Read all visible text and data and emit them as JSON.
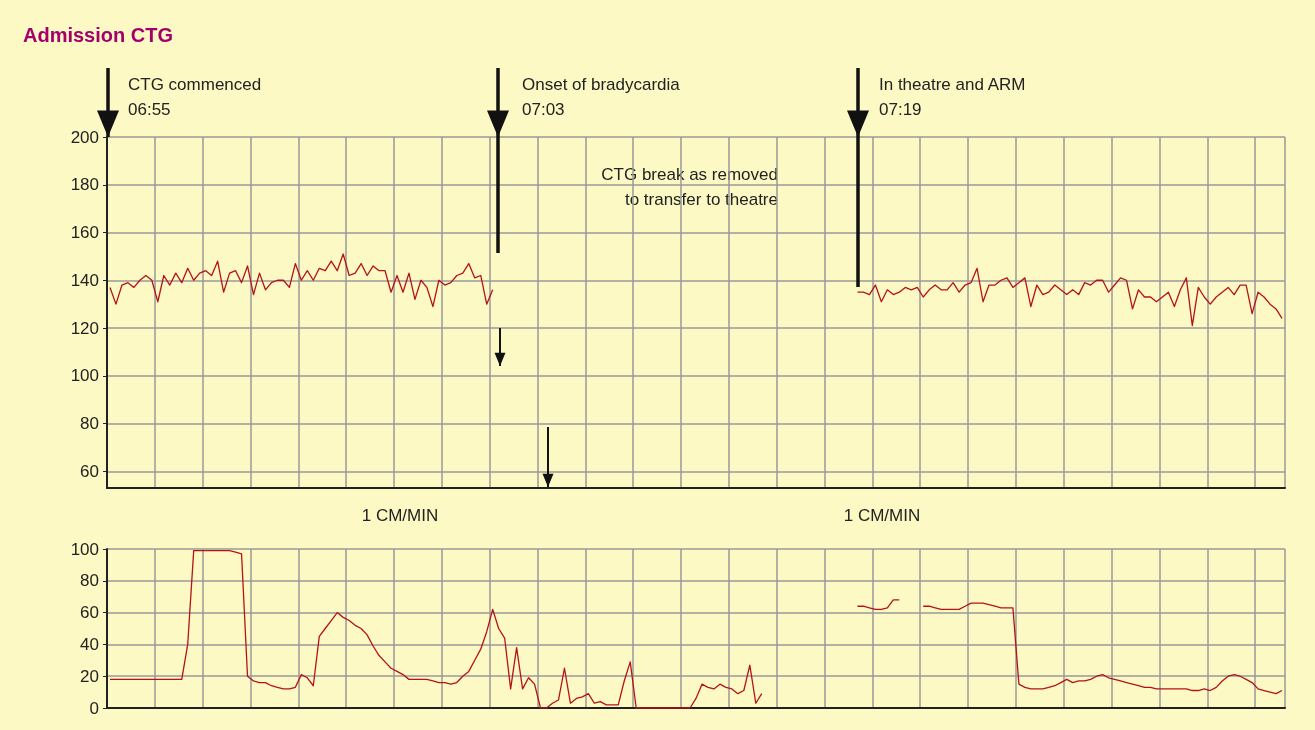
{
  "chart_data": [
    {
      "type": "line",
      "title": "Admission CTG",
      "annotations": [
        "CTG commenced\n06:55",
        "Onset of bradycardia\n07:03",
        "In theatre and ARM\n07:19",
        "CTG break as removed\nto transfer to theatre",
        "1 CM/MIN",
        "1 CM/MIN"
      ],
      "categories": [
        null,
        null,
        null,
        null,
        null,
        null,
        null,
        null,
        null,
        null,
        null,
        null,
        null,
        null,
        null,
        null,
        null,
        null,
        null,
        null,
        null,
        null,
        null,
        null,
        null,
        null,
        null,
        null,
        null,
        null,
        null,
        null,
        null,
        null,
        null,
        null,
        null,
        null,
        null,
        null,
        null,
        null,
        null,
        null,
        null,
        null,
        null,
        null,
        null,
        null,
        null,
        null,
        null,
        null,
        null,
        null,
        null,
        null,
        null,
        null,
        null,
        null,
        null,
        null,
        null,
        null,
        null,
        null,
        null,
        null,
        null,
        null,
        null,
        null,
        null,
        null,
        null,
        null,
        null,
        null,
        null,
        null,
        null,
        null,
        null,
        null,
        null,
        null,
        null,
        null,
        null,
        null,
        null,
        null,
        null,
        null,
        null,
        null,
        null,
        null,
        null,
        null,
        null,
        null,
        null,
        null,
        null,
        null,
        null,
        null,
        null,
        null,
        null,
        null,
        null,
        null,
        null,
        null,
        null,
        null,
        null,
        null,
        null,
        null,
        null,
        null,
        null,
        null,
        null,
        null,
        null,
        null,
        null,
        null,
        null,
        null,
        null,
        null,
        null,
        null,
        null,
        null,
        null,
        null,
        null,
        null,
        null,
        null,
        null,
        null,
        null,
        null,
        null,
        null,
        null,
        null,
        null,
        null,
        null,
        null,
        null,
        null,
        null,
        null,
        null,
        null,
        null,
        null,
        null,
        null,
        null,
        null,
        null,
        null,
        null,
        null,
        null,
        null,
        null,
        null,
        null,
        null,
        null,
        null,
        null,
        null,
        null,
        null,
        null,
        null,
        null,
        null,
        null,
        null,
        null,
        null,
        null
      ],
      "series": [
        {
          "color": "#b5121b",
          "values": [
            137,
            130,
            138,
            139,
            137,
            140,
            142,
            140,
            131,
            142,
            138,
            143,
            139,
            145,
            140,
            143,
            144,
            142,
            148,
            135,
            143,
            144,
            139,
            146,
            134,
            143,
            136,
            139,
            140,
            140,
            137,
            147,
            140,
            144,
            140,
            145,
            144,
            148,
            144,
            151,
            142,
            143,
            147,
            142,
            146,
            144,
            144,
            135,
            142,
            135,
            143,
            132,
            140,
            137,
            129,
            140,
            138,
            139,
            142,
            143,
            147,
            141,
            142,
            130,
            136,
            null,
            null,
            null,
            null,
            null,
            null,
            null,
            null,
            null,
            null,
            null,
            null,
            null,
            null,
            null,
            null,
            null,
            null,
            null,
            null,
            null,
            null,
            null,
            null,
            null,
            null,
            null,
            null,
            null,
            null,
            null,
            null,
            null,
            null,
            null,
            null,
            null,
            null,
            null,
            null,
            null,
            null,
            null,
            null,
            null,
            null,
            null,
            null,
            null,
            null,
            null,
            null,
            null,
            null,
            null,
            null,
            null,
            null,
            null,
            null,
            135,
            135,
            134,
            138,
            131,
            136,
            134,
            135,
            137,
            136,
            137,
            133,
            136,
            138,
            136,
            136,
            139,
            135,
            138,
            139,
            145,
            131,
            138,
            138,
            140,
            141,
            137,
            139,
            141,
            129,
            138,
            134,
            135,
            138,
            136,
            134,
            136,
            134,
            139,
            138,
            140,
            140,
            135,
            138,
            141,
            140,
            128,
            136,
            133,
            133,
            131,
            133,
            135,
            129,
            136,
            141,
            121,
            137,
            133,
            130,
            133,
            135,
            137,
            134,
            138,
            138,
            126,
            135,
            133,
            130,
            128,
            124
          ]
        }
      ],
      "ylim": [
        53,
        200
      ],
      "yticks": [
        60,
        80,
        100,
        120,
        140,
        160,
        180,
        200
      ],
      "grid": true,
      "tick_labels": "y"
    },
    {
      "type": "line",
      "categories": [
        null,
        null,
        null,
        null,
        null,
        null,
        null,
        null,
        null,
        null,
        null,
        null,
        null,
        null,
        null,
        null,
        null,
        null,
        null,
        null,
        null,
        null,
        null,
        null,
        null,
        null,
        null,
        null,
        null,
        null,
        null,
        null,
        null,
        null,
        null,
        null,
        null,
        null,
        null,
        null,
        null,
        null,
        null,
        null,
        null,
        null,
        null,
        null,
        null,
        null,
        null,
        null,
        null,
        null,
        null,
        null,
        null,
        null,
        null,
        null,
        null,
        null,
        null,
        null,
        null,
        null,
        null,
        null,
        null,
        null,
        null,
        null,
        null,
        null,
        null,
        null,
        null,
        null,
        null,
        null,
        null,
        null,
        null,
        null,
        null,
        null,
        null,
        null,
        null,
        null,
        null,
        null,
        null,
        null,
        null,
        null,
        null,
        null,
        null,
        null,
        null,
        null,
        null,
        null,
        null,
        null,
        null,
        null,
        null,
        null,
        null,
        null,
        null,
        null,
        null,
        null,
        null,
        null,
        null,
        null,
        null,
        null,
        null,
        null,
        null,
        null,
        null,
        null,
        null,
        null,
        null,
        null,
        null,
        null,
        null,
        null,
        null,
        null,
        null,
        null,
        null,
        null,
        null,
        null,
        null,
        null,
        null,
        null,
        null,
        null,
        null,
        null,
        null,
        null,
        null,
        null,
        null,
        null,
        null,
        null,
        null,
        null,
        null,
        null,
        null,
        null,
        null,
        null,
        null,
        null,
        null,
        null,
        null,
        null,
        null,
        null,
        null,
        null,
        null,
        null,
        null,
        null,
        null,
        null,
        null,
        null,
        null,
        null,
        null,
        null,
        null,
        null,
        null,
        null,
        null,
        null,
        null
      ],
      "series": [
        {
          "color": "#b5121b",
          "values": [
            18,
            18,
            18,
            18,
            18,
            18,
            18,
            18,
            18,
            18,
            18,
            18,
            18,
            40,
            99,
            99,
            99,
            99,
            99,
            99,
            99,
            98,
            97,
            20,
            17,
            16,
            16,
            14,
            13,
            12,
            12,
            13,
            21,
            19,
            14,
            45,
            50,
            55,
            60,
            57,
            55,
            52,
            50,
            46,
            39,
            33,
            29,
            25,
            23,
            21,
            18,
            18,
            18,
            18,
            17,
            16,
            16,
            15,
            16,
            20,
            23,
            30,
            37,
            48,
            62,
            50,
            44,
            12,
            38,
            12,
            19,
            15,
            0,
            0,
            3,
            5,
            25,
            3,
            6,
            7,
            9,
            3,
            4,
            2,
            2,
            2,
            17,
            29,
            0,
            0,
            0,
            0,
            0,
            0,
            0,
            0,
            0,
            0,
            6,
            15,
            13,
            12,
            15,
            13,
            12,
            9,
            11,
            27,
            3,
            9,
            null,
            null,
            null,
            null,
            null,
            null,
            null,
            null,
            null,
            null,
            null,
            null,
            null,
            null,
            null,
            64,
            64,
            63,
            62,
            62,
            63,
            68,
            68,
            null,
            null,
            null,
            64,
            64,
            63,
            62,
            62,
            62,
            62,
            64,
            66,
            66,
            66,
            65,
            64,
            63,
            63,
            63,
            15,
            13,
            12,
            12,
            12,
            13,
            14,
            16,
            18,
            16,
            17,
            17,
            18,
            20,
            21,
            19,
            18,
            17,
            16,
            15,
            14,
            13,
            13,
            12,
            12,
            12,
            12,
            12,
            12,
            11,
            11,
            12,
            11,
            13,
            17,
            20,
            21,
            20,
            18,
            16,
            12,
            11,
            10,
            9,
            11
          ]
        }
      ],
      "ylim": [
        0,
        100
      ],
      "yticks": [
        0,
        20,
        40,
        60,
        80,
        100
      ],
      "grid": true,
      "tick_labels": "y"
    }
  ]
}
